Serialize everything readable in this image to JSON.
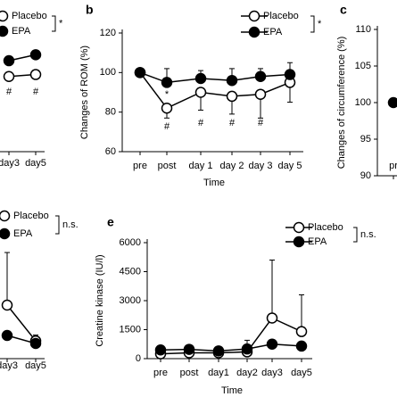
{
  "chart_data": [
    {
      "type": "line",
      "categories": [
        "day3",
        "day5"
      ],
      "ylim": [
        60,
        120
      ],
      "series": [
        {
          "name": "Placebo",
          "color": "#000000",
          "marker_fill": "#ffffff",
          "values": [
            98,
            99
          ]
        },
        {
          "name": "EPA",
          "color": "#000000",
          "marker_fill": "#000000",
          "values": [
            106,
            109
          ]
        }
      ],
      "legend_note": "*",
      "annotations": [
        "#",
        "#"
      ]
    },
    {
      "type": "line",
      "panel_label": "b",
      "y_label": "Changes of ROM (%)",
      "x_label": "Time",
      "categories": [
        "pre",
        "post",
        "day 1",
        "day 2",
        "day 3",
        "day 5"
      ],
      "ylim": [
        60,
        120
      ],
      "yticks": [
        60,
        80,
        100,
        120
      ],
      "series": [
        {
          "name": "Placebo",
          "color": "#000000",
          "marker_fill": "#ffffff",
          "values": [
            100,
            82,
            90,
            88,
            89,
            95
          ],
          "errors": [
            0,
            5,
            9,
            9,
            12,
            10
          ]
        },
        {
          "name": "EPA",
          "color": "#000000",
          "marker_fill": "#000000",
          "values": [
            100,
            95,
            97,
            96,
            98,
            99
          ],
          "errors": [
            0,
            7,
            4,
            6,
            4,
            6
          ]
        }
      ],
      "legend_note": "*",
      "annotations": [
        "*",
        "#",
        "#",
        "#",
        "#"
      ]
    },
    {
      "type": "line",
      "panel_label": "c",
      "y_label": "Changes of circumference (%)",
      "categories": [
        "pr"
      ],
      "ylim": [
        90,
        110
      ],
      "yticks": [
        90,
        95,
        100,
        105,
        110
      ],
      "series": [
        {
          "name": "EPA",
          "color": "#000000",
          "marker_fill": "#000000",
          "values": [
            100
          ]
        }
      ]
    },
    {
      "type": "line",
      "categories": [
        "day3",
        "day5"
      ],
      "ylim": [
        0,
        6000
      ],
      "series": [
        {
          "name": "Placebo",
          "color": "#000000",
          "marker_fill": "#ffffff",
          "values": [
            2770,
            920
          ],
          "errors": [
            2720,
            300
          ]
        },
        {
          "name": "EPA",
          "color": "#000000",
          "marker_fill": "#000000",
          "values": [
            1200,
            785
          ]
        }
      ],
      "legend_note": "n.s."
    },
    {
      "type": "line",
      "panel_label": "e",
      "y_label": "Creatine kinase (IU/l)",
      "x_label": "Time",
      "categories": [
        "pre",
        "post",
        "day1",
        "day2",
        "day3",
        "day5"
      ],
      "ylim": [
        0,
        6000
      ],
      "yticks": [
        0,
        1500,
        3000,
        4500,
        6000
      ],
      "series": [
        {
          "name": "Placebo",
          "color": "#000000",
          "marker_fill": "#ffffff",
          "values": [
            250,
            300,
            300,
            350,
            2100,
            1400
          ],
          "errors": [
            100,
            100,
            100,
            600,
            3000,
            1900
          ]
        },
        {
          "name": "EPA",
          "color": "#000000",
          "marker_fill": "#000000",
          "values": [
            450,
            480,
            400,
            500,
            750,
            650
          ],
          "errors": [
            100,
            100,
            100,
            200,
            150,
            150
          ]
        }
      ],
      "legend_note": "n.s."
    }
  ]
}
